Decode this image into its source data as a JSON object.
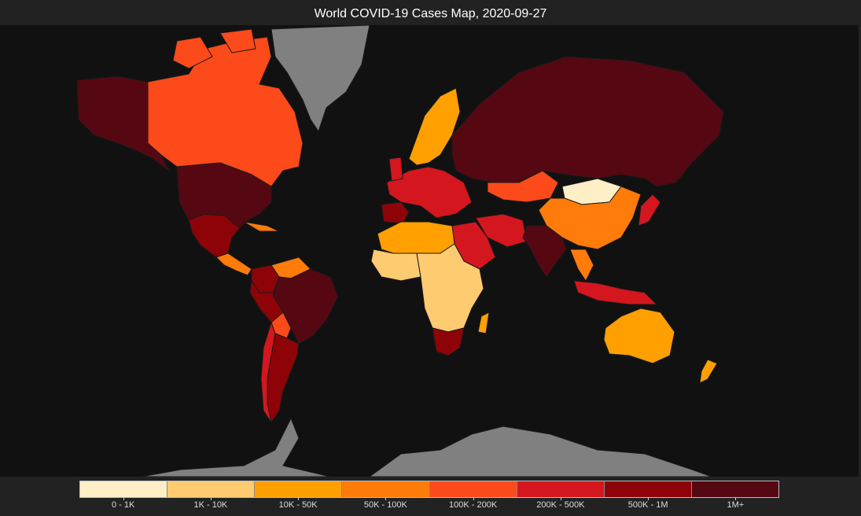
{
  "title": "World COVID-19 Cases Map, 2020-09-27",
  "colors": {
    "background": "#222222",
    "ocean": "#111111",
    "no_data": "#808080",
    "border": "#1a1a1a"
  },
  "legend": {
    "bins": [
      {
        "label": "0 - 1K",
        "color": "#ffefc7"
      },
      {
        "label": "1K - 10K",
        "color": "#ffcb70"
      },
      {
        "label": "10K - 50K",
        "color": "#ffa000"
      },
      {
        "label": "50K - 100K",
        "color": "#ff7b0a"
      },
      {
        "label": "100K - 200K",
        "color": "#fc4a1a"
      },
      {
        "label": "200K - 500K",
        "color": "#d4161e"
      },
      {
        "label": "500K - 1M",
        "color": "#8e0308"
      },
      {
        "label": "1M+",
        "color": "#560812"
      }
    ]
  },
  "regions": [
    {
      "name": "canada",
      "bin": "100K - 200K"
    },
    {
      "name": "usa",
      "bin": "1M+"
    },
    {
      "name": "alaska",
      "bin": "1M+"
    },
    {
      "name": "mexico",
      "bin": "500K - 1M"
    },
    {
      "name": "greenland",
      "bin": "no data"
    },
    {
      "name": "central-america",
      "bin": "50K - 100K"
    },
    {
      "name": "colombia",
      "bin": "500K - 1M"
    },
    {
      "name": "venezuela",
      "bin": "50K - 100K"
    },
    {
      "name": "brazil",
      "bin": "1M+"
    },
    {
      "name": "peru",
      "bin": "500K - 1M"
    },
    {
      "name": "bolivia",
      "bin": "100K - 200K"
    },
    {
      "name": "chile",
      "bin": "200K - 500K"
    },
    {
      "name": "argentina",
      "bin": "500K - 1M"
    },
    {
      "name": "russia",
      "bin": "1M+"
    },
    {
      "name": "kazakhstan",
      "bin": "100K - 200K"
    },
    {
      "name": "mongolia",
      "bin": "0 - 1K"
    },
    {
      "name": "china",
      "bin": "50K - 100K"
    },
    {
      "name": "india",
      "bin": "1M+"
    },
    {
      "name": "iran",
      "bin": "200K - 500K"
    },
    {
      "name": "saudi-arabia",
      "bin": "200K - 500K"
    },
    {
      "name": "indonesia",
      "bin": "200K - 500K"
    },
    {
      "name": "australia",
      "bin": "10K - 50K"
    },
    {
      "name": "north-africa",
      "bin": "10K - 50K"
    },
    {
      "name": "west-africa",
      "bin": "1K - 10K"
    },
    {
      "name": "central-africa",
      "bin": "1K - 10K"
    },
    {
      "name": "south-africa",
      "bin": "500K - 1M"
    },
    {
      "name": "scandinavia",
      "bin": "10K - 50K"
    },
    {
      "name": "western-europe",
      "bin": "200K - 500K"
    },
    {
      "name": "spain",
      "bin": "500K - 1M"
    },
    {
      "name": "antarctica",
      "bin": "no data"
    }
  ]
}
